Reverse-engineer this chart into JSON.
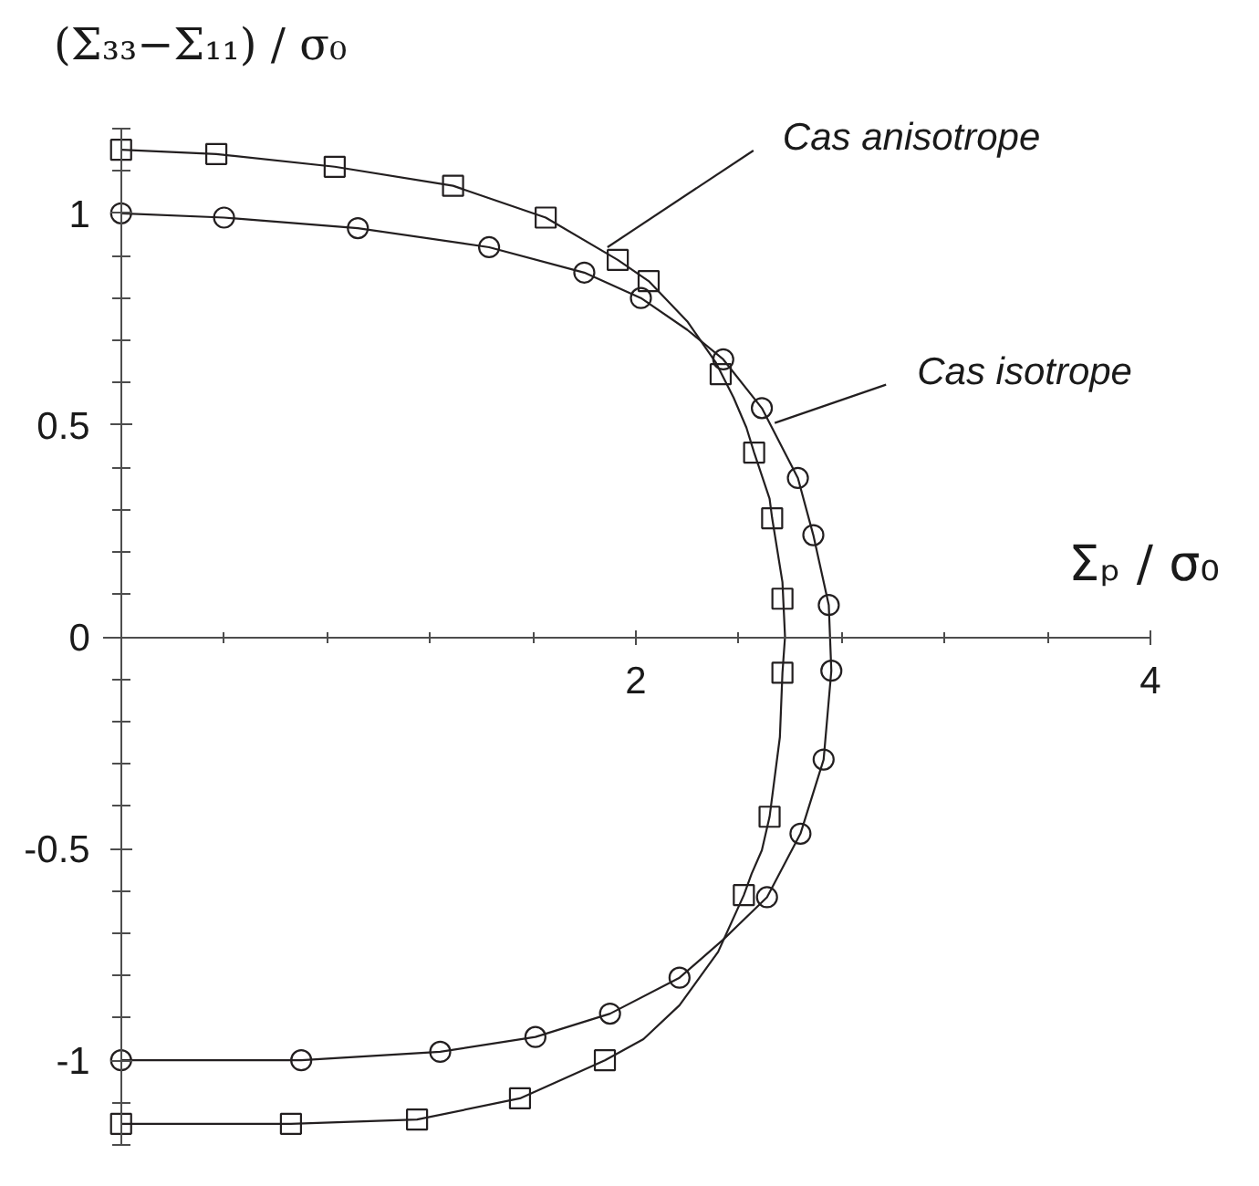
{
  "chart_data": {
    "type": "line",
    "xlabel": "Σₚ / σ₀",
    "ylabel": "(Σ₃₃−Σ₁₁) / σ₀",
    "xlim": [
      -0.07,
      4
    ],
    "ylim": [
      -1.2,
      1.2
    ],
    "xticks": [
      {
        "value": 0.4,
        "label": null
      },
      {
        "value": 0.8,
        "label": null
      },
      {
        "value": 1.2,
        "label": null
      },
      {
        "value": 1.6,
        "label": null
      },
      2,
      {
        "value": 2.4,
        "label": null
      },
      {
        "value": 2.8,
        "label": null
      },
      {
        "value": 3.2,
        "label": null
      },
      {
        "value": 3.6,
        "label": null
      },
      4
    ],
    "yticks": [
      {
        "value": -1.2,
        "label": null
      },
      {
        "value": -1.1,
        "label": null
      },
      -1,
      {
        "value": -0.9,
        "label": null
      },
      {
        "value": -0.8,
        "label": null
      },
      {
        "value": -0.7,
        "label": null
      },
      {
        "value": -0.6,
        "label": null
      },
      -0.5,
      {
        "value": -0.4,
        "label": null
      },
      {
        "value": -0.3,
        "label": null
      },
      {
        "value": -0.2,
        "label": null
      },
      {
        "value": -0.1,
        "label": null
      },
      0,
      {
        "value": 0.1,
        "label": null
      },
      {
        "value": 0.2,
        "label": null
      },
      {
        "value": 0.3,
        "label": null
      },
      {
        "value": 0.4,
        "label": null
      },
      0.5,
      {
        "value": 0.6,
        "label": null
      },
      {
        "value": 0.7,
        "label": null
      },
      {
        "value": 0.8,
        "label": null
      },
      {
        "value": 0.9,
        "label": null
      },
      1,
      {
        "value": 1.1,
        "label": null
      },
      {
        "value": 1.2,
        "label": null
      }
    ],
    "grid": false,
    "annotations": [
      {
        "text": "Cas anisotrope",
        "x": 1.89,
        "y": 0.92
      },
      {
        "text": "Cas isotrope",
        "x": 2.54,
        "y": 0.505
      }
    ],
    "series": [
      {
        "color": "#231f20",
        "x": [
          0,
          0.37,
          0.83,
          1.29,
          1.65,
          1.93,
          2.05,
          2.2,
          2.31,
          2.38,
          2.43,
          2.46,
          2.52,
          2.53,
          2.57,
          2.58,
          2.57,
          2.56,
          2.52,
          2.49,
          2.45,
          2.42,
          2.32,
          2.17,
          2.03,
          1.88,
          1.55,
          1.15,
          0.66,
          0
        ],
        "values": [
          1.15,
          1.14,
          1.11,
          1.065,
          0.99,
          0.89,
          0.84,
          0.745,
          0.649,
          0.565,
          0.494,
          0.435,
          0.326,
          0.28,
          0.129,
          0.0,
          -0.085,
          -0.237,
          -0.425,
          -0.504,
          -0.56,
          -0.61,
          -0.744,
          -0.87,
          -0.95,
          -1.0,
          -1.09,
          -1.14,
          -1.15,
          -1.15
        ]
      },
      {
        "color": "#231f20",
        "x": [
          0,
          0.4,
          0.92,
          1.43,
          1.8,
          2.02,
          2.2,
          2.34,
          2.49,
          2.63,
          2.69,
          2.75,
          2.76,
          2.73,
          2.64,
          2.51,
          2.34,
          2.17,
          1.9,
          1.61,
          1.24,
          0.7,
          0
        ],
        "values": [
          1.0,
          0.99,
          0.965,
          0.92,
          0.86,
          0.8,
          0.725,
          0.655,
          0.54,
          0.375,
          0.24,
          0.075,
          -0.08,
          -0.29,
          -0.465,
          -0.615,
          -0.715,
          -0.805,
          -0.89,
          -0.945,
          -0.98,
          -1.0,
          -1.0
        ]
      },
      {
        "type": "scatter",
        "marker": "square",
        "color": "#231f20",
        "x": [
          0,
          0.37,
          0.83,
          1.29,
          1.65,
          1.93,
          2.05,
          2.33,
          2.46,
          2.53,
          2.57,
          2.57,
          2.52,
          2.42,
          1.88,
          1.55,
          1.15,
          0.66,
          0
        ],
        "values": [
          1.15,
          1.14,
          1.11,
          1.065,
          0.99,
          0.89,
          0.84,
          0.62,
          0.435,
          0.28,
          0.09,
          -0.085,
          -0.425,
          -0.61,
          -1.0,
          -1.09,
          -1.14,
          -1.15,
          -1.15
        ]
      },
      {
        "type": "scatter",
        "marker": "circle",
        "color": "#231f20",
        "x": [
          0,
          0.4,
          0.92,
          1.43,
          1.8,
          2.02,
          2.34,
          2.49,
          2.63,
          2.69,
          2.75,
          2.76,
          2.73,
          2.64,
          2.51,
          2.17,
          1.9,
          1.61,
          1.24,
          0.7,
          0
        ],
        "values": [
          1.0,
          0.99,
          0.965,
          0.92,
          0.86,
          0.8,
          0.655,
          0.54,
          0.375,
          0.24,
          0.075,
          -0.08,
          -0.29,
          -0.465,
          -0.615,
          -0.805,
          -0.89,
          -0.945,
          -0.98,
          -1.0,
          -1.0
        ]
      }
    ]
  }
}
